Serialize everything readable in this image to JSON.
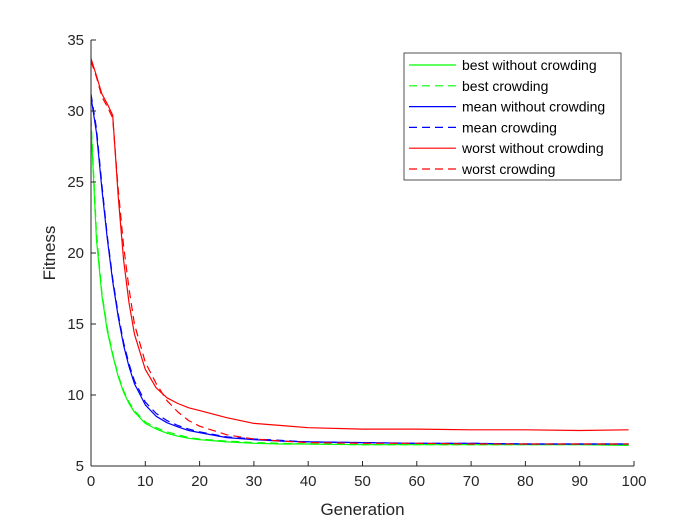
{
  "chart_data": {
    "type": "line",
    "title": "",
    "xlabel": "Generation",
    "ylabel": "Fitness",
    "xlim": [
      0,
      100
    ],
    "ylim": [
      5,
      35
    ],
    "xticks": [
      0,
      10,
      20,
      30,
      40,
      50,
      60,
      70,
      80,
      90,
      100
    ],
    "yticks": [
      5,
      10,
      15,
      20,
      25,
      30,
      35
    ],
    "grid": false,
    "legend_position": "top-right",
    "x": [
      0,
      1,
      2,
      3,
      4,
      5,
      6,
      7,
      8,
      10,
      12,
      14,
      16,
      18,
      20,
      25,
      30,
      35,
      40,
      50,
      60,
      70,
      80,
      90,
      99
    ],
    "series": [
      {
        "name": "best without crowding",
        "color": "#00ff00",
        "style": "solid",
        "values": [
          29,
          21,
          17,
          14.5,
          12.8,
          11.3,
          10.2,
          9.4,
          8.8,
          8.0,
          7.6,
          7.3,
          7.1,
          6.95,
          6.85,
          6.7,
          6.6,
          6.55,
          6.55,
          6.5,
          6.5,
          6.5,
          6.5,
          6.5,
          6.45
        ]
      },
      {
        "name": "best crowding",
        "color": "#00ff00",
        "style": "dashed",
        "values": [
          29.5,
          21.5,
          17.2,
          14.7,
          12.9,
          11.4,
          10.3,
          9.5,
          8.9,
          8.1,
          7.7,
          7.4,
          7.2,
          7.0,
          6.9,
          6.75,
          6.65,
          6.6,
          6.55,
          6.5,
          6.5,
          6.5,
          6.5,
          6.5,
          6.5
        ]
      },
      {
        "name": "mean without crowding",
        "color": "#0000ff",
        "style": "solid",
        "values": [
          31,
          28.5,
          24.5,
          21,
          18,
          15.5,
          13.5,
          12,
          10.8,
          9.3,
          8.5,
          8.05,
          7.75,
          7.5,
          7.35,
          7.0,
          6.85,
          6.75,
          6.7,
          6.65,
          6.6,
          6.6,
          6.55,
          6.55,
          6.55
        ]
      },
      {
        "name": "mean crowding",
        "color": "#0000ff",
        "style": "dashed",
        "values": [
          31.2,
          28.8,
          24.8,
          21.2,
          18.2,
          15.7,
          13.7,
          12.2,
          11.0,
          9.5,
          8.7,
          8.2,
          7.85,
          7.6,
          7.4,
          7.05,
          6.9,
          6.8,
          6.7,
          6.65,
          6.6,
          6.6,
          6.55,
          6.55,
          6.55
        ]
      },
      {
        "name": "worst without crowding",
        "color": "#ff0000",
        "style": "solid",
        "values": [
          33.7,
          32.5,
          31.2,
          30.5,
          29.7,
          24,
          19.5,
          16.5,
          14.3,
          11.8,
          10.5,
          9.8,
          9.4,
          9.1,
          8.9,
          8.4,
          8.0,
          7.85,
          7.7,
          7.6,
          7.6,
          7.55,
          7.55,
          7.5,
          7.55
        ]
      },
      {
        "name": "worst crowding",
        "color": "#ff0000",
        "style": "dashed",
        "values": [
          33.5,
          32.4,
          31.0,
          30.3,
          29.5,
          24.5,
          20.5,
          17.5,
          15.0,
          12.3,
          10.8,
          9.6,
          8.8,
          8.2,
          7.8,
          7.2,
          6.9,
          6.75,
          6.65,
          6.6,
          6.6,
          6.55,
          6.55,
          6.55,
          6.55
        ]
      }
    ]
  }
}
